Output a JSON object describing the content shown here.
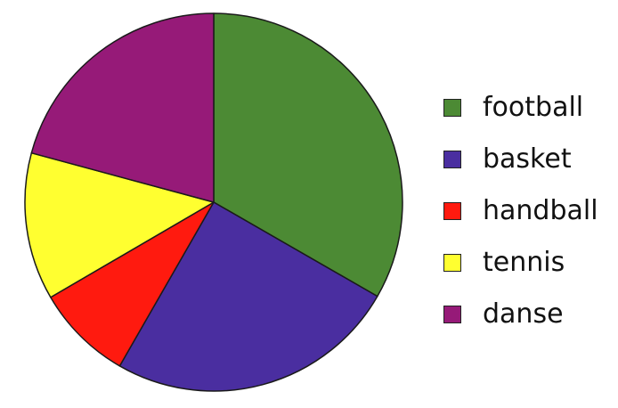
{
  "chart_data": {
    "type": "pie",
    "title": "",
    "legend_position": "right",
    "start": "top",
    "direction": "clockwise",
    "categories": [
      "football",
      "basket",
      "handball",
      "tennis",
      "danse"
    ],
    "values": [
      33.3,
      25.0,
      8.3,
      12.6,
      20.8
    ],
    "colors": [
      "#4c8a34",
      "#4a2ea0",
      "#ff1a0f",
      "#ffff30",
      "#961a78"
    ]
  }
}
